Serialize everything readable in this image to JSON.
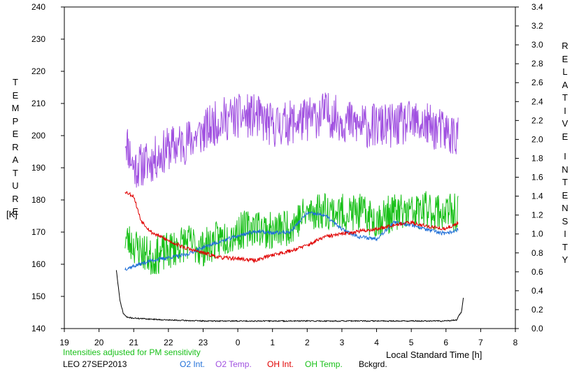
{
  "chart_data": {
    "type": "line",
    "left_axis": {
      "label": "TEMPERATURE",
      "unit": "[K]",
      "range": [
        140,
        240
      ],
      "ticks": [
        140,
        150,
        160,
        170,
        180,
        190,
        200,
        210,
        220,
        230,
        240
      ]
    },
    "right_axis": {
      "label": "RELATIVE INTENSITY",
      "range": [
        0.0,
        3.4
      ],
      "ticks": [
        "0.0",
        "0.2",
        "0.4",
        "0.6",
        "0.8",
        "1.0",
        "1.2",
        "1.4",
        "1.6",
        "1.8",
        "2.0",
        "2.2",
        "2.4",
        "2.6",
        "2.8",
        "3.0",
        "3.2",
        "3.4"
      ]
    },
    "x_axis": {
      "label": "Local Standard Time [h]",
      "range": [
        19,
        32
      ],
      "tick_labels": [
        "19",
        "20",
        "21",
        "22",
        "23",
        "0",
        "1",
        "2",
        "3",
        "4",
        "5",
        "6",
        "7",
        "8"
      ]
    },
    "note": "Intensities adjusted for PM sensitivity",
    "station": "LEO 27SEP2013",
    "legend": [
      {
        "name": "O2 Int.",
        "color": "#1f6fd8"
      },
      {
        "name": "O2 Temp.",
        "color": "#a050e0"
      },
      {
        "name": "OH Int.",
        "color": "#e00000"
      },
      {
        "name": "OH Temp.",
        "color": "#18c018"
      },
      {
        "name": "Bckgrd.",
        "color": "#000000"
      }
    ],
    "series": [
      {
        "name": "O2 Temp.",
        "axis": "left",
        "color": "#a050e0",
        "noise": 7,
        "seed": 11,
        "x": [
          20.75,
          21.0,
          21.5,
          22.0,
          22.5,
          23.0,
          23.5,
          24.0,
          24.5,
          25.0,
          25.5,
          26.0,
          26.5,
          27.0,
          27.5,
          28.0,
          28.5,
          29.0,
          29.5,
          30.0,
          30.35
        ],
        "y": [
          200,
          190,
          192,
          196,
          198,
          201,
          205,
          206,
          206,
          203,
          204,
          205,
          207,
          205,
          203,
          203,
          203,
          204,
          203,
          201,
          200
        ]
      },
      {
        "name": "OH Temp.",
        "axis": "left",
        "color": "#18c018",
        "noise": 6,
        "seed": 23,
        "x": [
          20.75,
          21.0,
          21.5,
          22.0,
          22.5,
          23.0,
          23.5,
          24.0,
          24.5,
          25.0,
          25.5,
          26.0,
          26.5,
          27.0,
          27.5,
          28.0,
          28.5,
          29.0,
          29.5,
          30.0,
          30.35
        ],
        "y": [
          168,
          166,
          162,
          164,
          167,
          165,
          168,
          170,
          172,
          170,
          172,
          176,
          177,
          176,
          176,
          174,
          176,
          176,
          177,
          176,
          176
        ]
      },
      {
        "name": "O2 Int.",
        "axis": "right",
        "color": "#1f6fd8",
        "noise": 0.02,
        "seed": 37,
        "x": [
          20.75,
          21.0,
          21.5,
          22.0,
          22.5,
          23.0,
          23.5,
          24.0,
          24.5,
          25.0,
          25.5,
          26.0,
          26.5,
          27.0,
          27.5,
          28.0,
          28.5,
          29.0,
          29.5,
          30.0,
          30.35
        ],
        "y": [
          0.63,
          0.66,
          0.72,
          0.75,
          0.78,
          0.86,
          0.92,
          0.98,
          1.03,
          1.01,
          1.02,
          1.22,
          1.2,
          1.05,
          0.97,
          0.95,
          1.12,
          1.1,
          1.04,
          1.0,
          1.05
        ]
      },
      {
        "name": "OH Int.",
        "axis": "right",
        "color": "#e00000",
        "noise": 0.02,
        "seed": 53,
        "x": [
          20.75,
          21.0,
          21.2,
          21.5,
          22.0,
          22.5,
          23.0,
          23.5,
          24.0,
          24.5,
          25.0,
          25.5,
          26.0,
          26.5,
          27.0,
          27.5,
          28.0,
          28.5,
          29.0,
          29.5,
          30.0,
          30.35
        ],
        "y": [
          1.45,
          1.4,
          1.15,
          1.02,
          0.93,
          0.85,
          0.8,
          0.75,
          0.74,
          0.72,
          0.78,
          0.82,
          0.88,
          0.97,
          1.0,
          1.03,
          1.05,
          1.1,
          1.12,
          1.08,
          1.05,
          1.12
        ]
      },
      {
        "name": "Bckgrd.",
        "axis": "right",
        "color": "#000000",
        "noise": 0.006,
        "seed": 71,
        "x": [
          20.5,
          20.6,
          20.7,
          20.8,
          21.0,
          22.0,
          23.0,
          24.0,
          25.0,
          26.0,
          27.0,
          28.0,
          29.0,
          30.0,
          30.3,
          30.45,
          30.5
        ],
        "y": [
          0.62,
          0.3,
          0.16,
          0.12,
          0.11,
          0.09,
          0.08,
          0.08,
          0.08,
          0.08,
          0.08,
          0.08,
          0.08,
          0.08,
          0.09,
          0.18,
          0.33
        ]
      }
    ]
  }
}
